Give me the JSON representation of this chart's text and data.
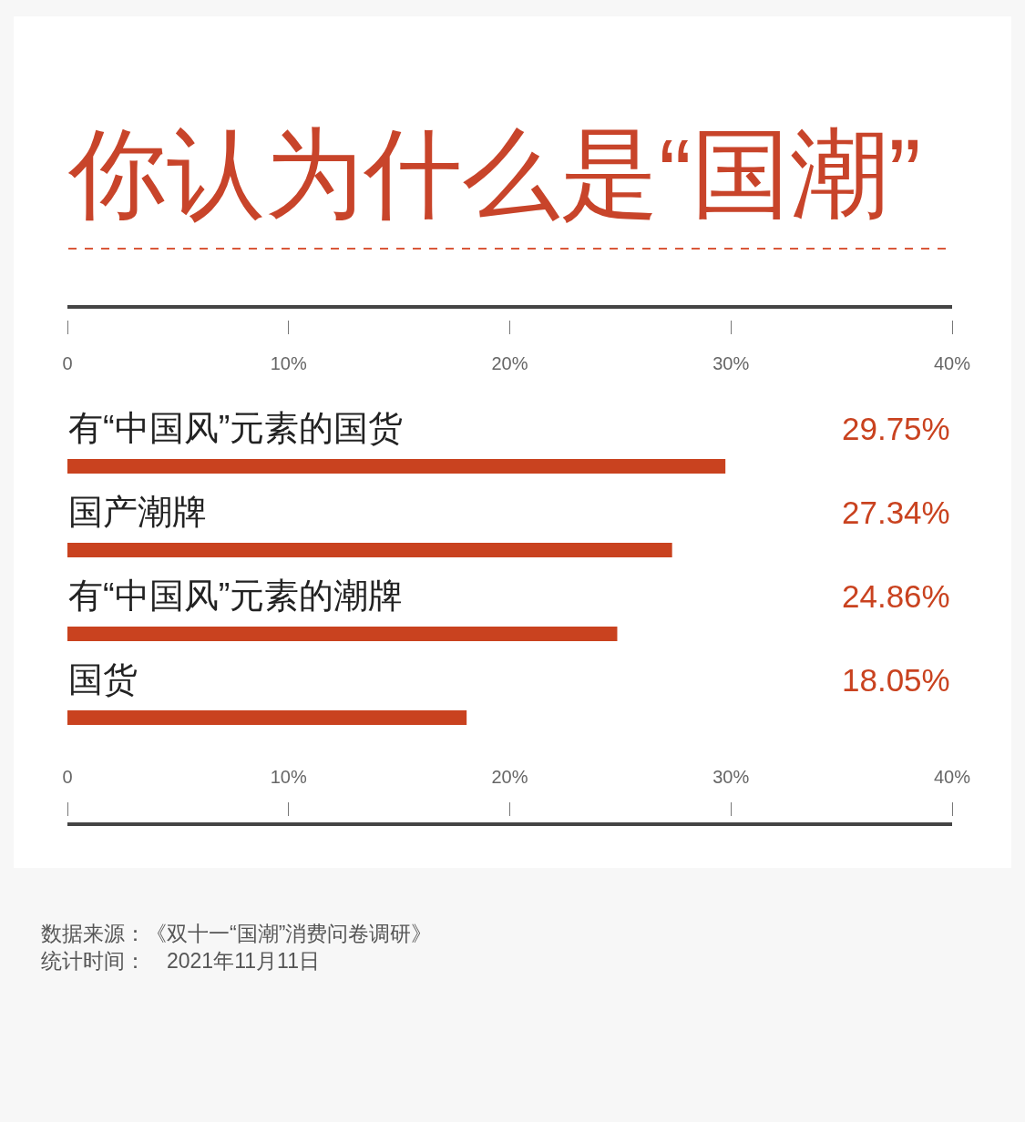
{
  "chart_data": {
    "type": "bar",
    "orientation": "horizontal",
    "title": "你认为什么是“国潮”",
    "categories": [
      "有“中国风”元素的国货",
      "国产潮牌",
      "有“中国风”元素的潮牌",
      "国货"
    ],
    "values": [
      29.75,
      27.34,
      24.86,
      18.05
    ],
    "value_labels": [
      "29.75%",
      "27.34%",
      "24.86%",
      "18.05%"
    ],
    "color": "#c9421f",
    "xlim": [
      0,
      40
    ],
    "xticks": [
      0,
      {
        "value": 10,
        "label": "10%"
      },
      {
        "value": 20,
        "label": "20%"
      },
      {
        "value": 30,
        "label": "30%"
      },
      {
        "value": 40,
        "label": "40%"
      }
    ],
    "x2lim": [
      0,
      40
    ],
    "x2ticks": [
      0,
      {
        "value": 10,
        "label": "10%"
      },
      {
        "value": 20,
        "label": "20%"
      },
      {
        "value": 30,
        "label": "30%"
      },
      {
        "value": 40,
        "label": "40%"
      }
    ],
    "annotations": [
      "数据来源：《双十一“国潮”消费问卷调研》",
      "统计时间：　2021年11月11日"
    ]
  }
}
